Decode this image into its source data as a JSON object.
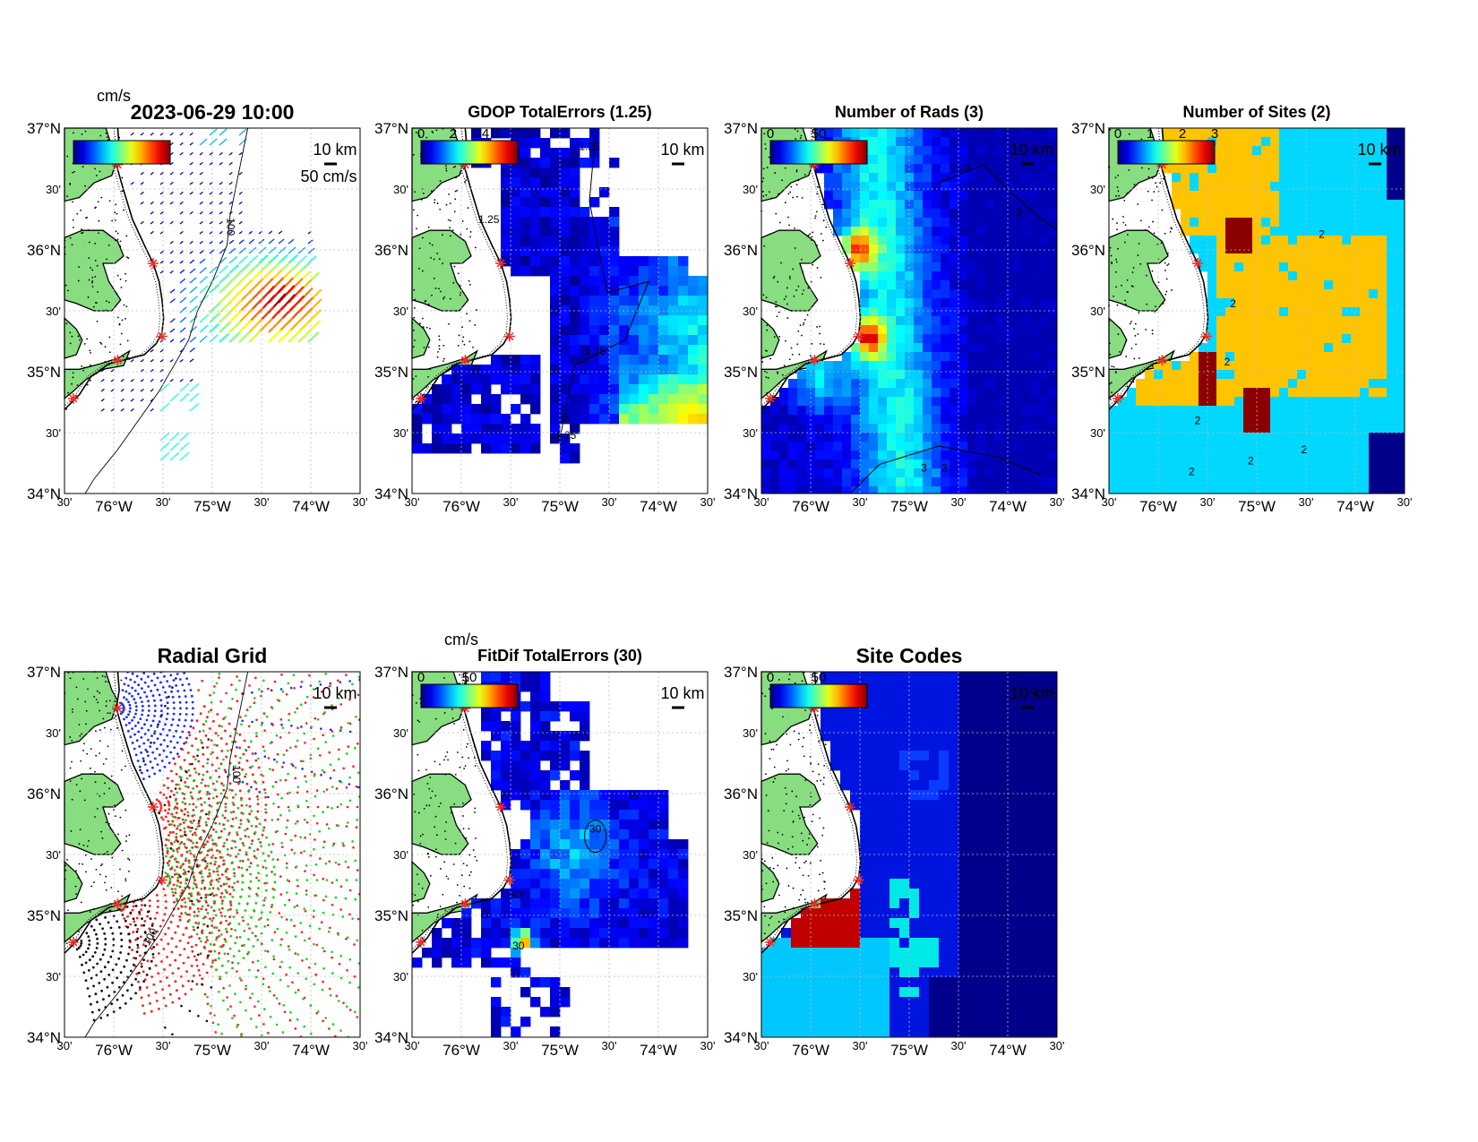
{
  "figure": {
    "panels": [
      {
        "id": "total-velocity",
        "title": "2023-06-29 10:00",
        "title_style": "big",
        "colorbar_unit": "cm/s",
        "colorbar_ticks": [],
        "scale_label": "50 cm/s",
        "km_label": "10 km",
        "kind": "vectors"
      },
      {
        "id": "gdop-total-errors",
        "title": "GDOP TotalErrors (1.25)",
        "colorbar_ticks": [
          "0",
          "2",
          "4"
        ],
        "km_label": "10 km",
        "kind": "field",
        "contour_labels": [
          "1.25",
          "1.25",
          "1.25",
          "1.25"
        ]
      },
      {
        "id": "number-of-rads",
        "title": "Number of Rads (3)",
        "colorbar_ticks": [
          "0",
          "50"
        ],
        "km_label": "10 km",
        "kind": "field",
        "contour_labels": [
          "3",
          "3",
          "3",
          "3"
        ]
      },
      {
        "id": "number-of-sites",
        "title": "Number of Sites (2)",
        "colorbar_ticks": [
          "0",
          "1",
          "2",
          "3"
        ],
        "km_label": "10 km",
        "kind": "categorical",
        "contour_labels": [
          "2",
          "2",
          "2",
          "2",
          "2",
          "2",
          "2"
        ]
      },
      {
        "id": "radial-grid",
        "title": "Radial Grid",
        "title_style": "big",
        "km_label": "10 km",
        "kind": "radial",
        "isobath_labels": [
          "100",
          "100"
        ]
      },
      {
        "id": "fitdif-total-errors",
        "title": "FitDif TotalErrors (30)",
        "colorbar_unit": "cm/s",
        "colorbar_ticks": [
          "0",
          "50"
        ],
        "km_label": "10 km",
        "kind": "field",
        "contour_labels": [
          "30",
          "30",
          "30"
        ]
      },
      {
        "id": "site-codes",
        "title": "Site Codes",
        "title_style": "big",
        "colorbar_ticks": [
          "0",
          "50"
        ],
        "km_label": "10 km",
        "kind": "codes"
      }
    ],
    "lat_ticks": [
      "37°N",
      "30'",
      "36°N",
      "30'",
      "35°N",
      "30'",
      "34°N"
    ],
    "lon_ticks": [
      "30'",
      "76°W",
      "30'",
      "75°W",
      "30'",
      "74°W",
      "30'"
    ],
    "isobath_label": "100",
    "colors": {
      "land": "#88dd80",
      "coast": "#000000",
      "site_marker": "#e8302a",
      "vector_low": "#1a3cff",
      "vector_high": "#8b0000",
      "category_one": "#00d8ff",
      "category_two": "#ffc400",
      "category_three": "#8b0000",
      "category_zero": "#00008b",
      "field_low": "#0000ff"
    },
    "radial_site_colors": [
      "#1a2cff",
      "#ff1a1a",
      "#18d018",
      "#ff1a1a",
      "#111111"
    ]
  }
}
